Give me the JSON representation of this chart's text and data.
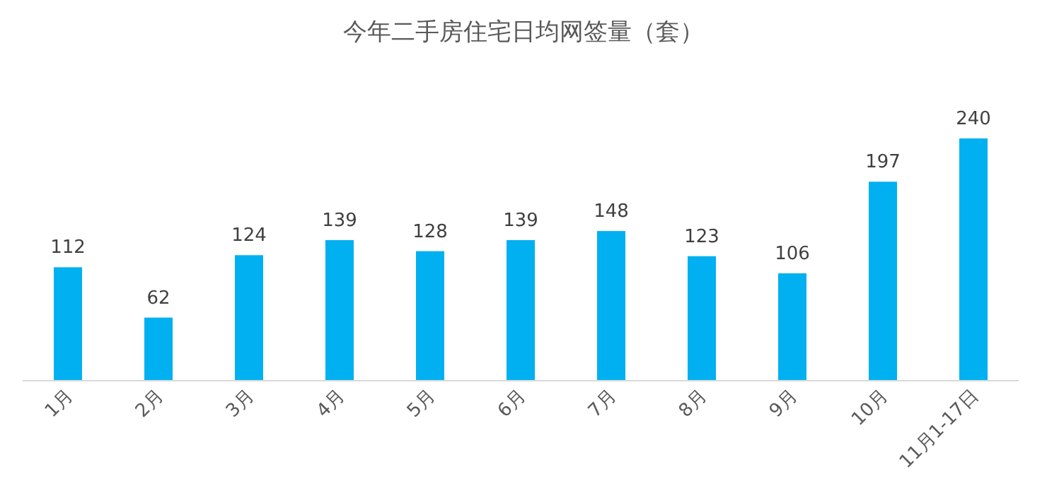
{
  "chart_data": {
    "type": "bar",
    "title": "今年二手房住宅日均网签量（套）",
    "categories": [
      "1月",
      "2月",
      "3月",
      "4月",
      "5月",
      "6月",
      "7月",
      "8月",
      "9月",
      "10月",
      "11月1-17日"
    ],
    "values": [
      112,
      62,
      124,
      139,
      128,
      139,
      148,
      123,
      106,
      197,
      240
    ],
    "color": "#00b0f0",
    "data_labels": true
  }
}
